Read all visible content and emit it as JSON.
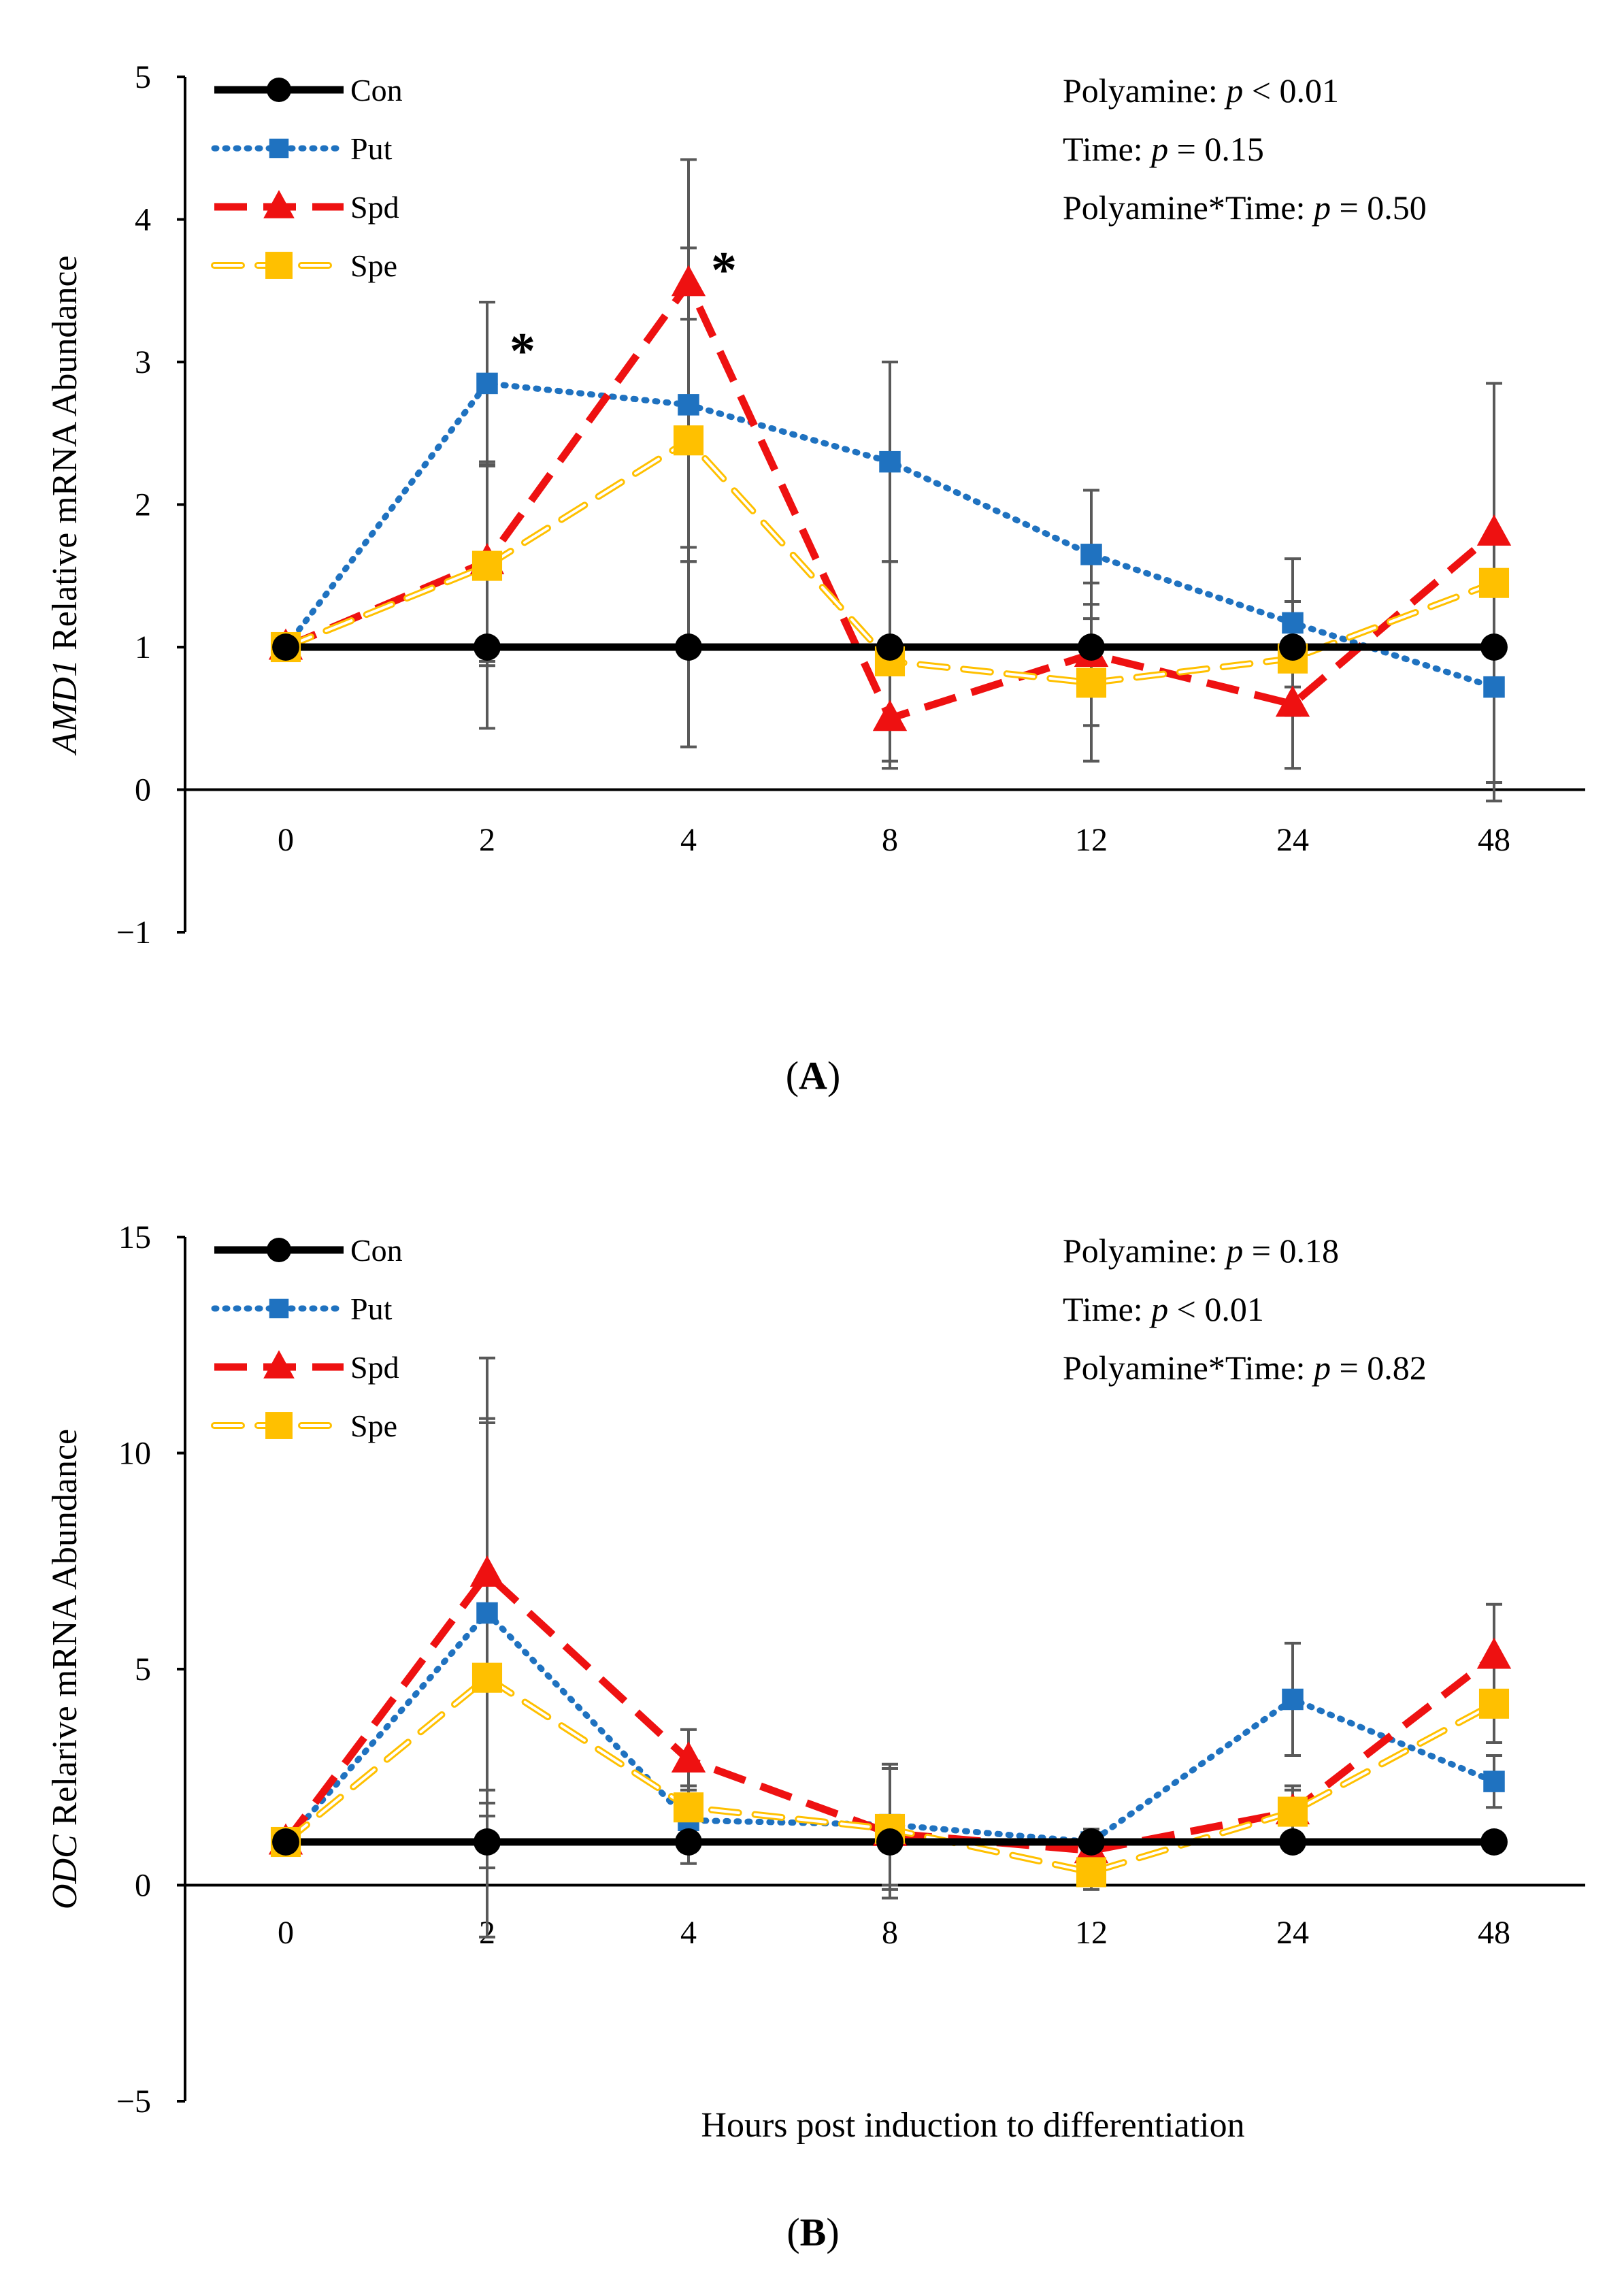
{
  "chart_data": [
    {
      "type": "line",
      "panel_label_open": "(",
      "panel_label_letter": "A",
      "panel_label_close": ")",
      "ylabel_gene": "AMD1",
      "ylabel_rest": " Relative mRNA Abundance",
      "xlabel": "",
      "ylim": [
        -1,
        5
      ],
      "yticks": [
        -1,
        0,
        1,
        2,
        3,
        4,
        5
      ],
      "ytick_labels": [
        "−1",
        "0",
        "1",
        "2",
        "3",
        "4",
        "5"
      ],
      "categories": [
        "0",
        "2",
        "4",
        "8",
        "12",
        "24",
        "48"
      ],
      "series": [
        {
          "name": "Con",
          "color": "#000000",
          "marker": "circle",
          "style": "solid",
          "values": [
            1,
            1,
            1,
            1,
            1,
            1,
            1
          ],
          "errors": [
            0,
            0.57,
            0.7,
            0,
            0,
            0,
            0
          ]
        },
        {
          "name": "Put",
          "color": "#1f72c0",
          "marker": "square",
          "style": "dotted",
          "values": [
            1,
            2.85,
            2.7,
            2.3,
            1.65,
            1.17,
            0.72
          ],
          "errors": [
            0,
            0.57,
            1.1,
            0.7,
            0.45,
            0.45,
            0.8
          ]
        },
        {
          "name": "Spd",
          "color": "#ee1111",
          "marker": "triangle",
          "style": "dashed",
          "values": [
            1,
            1.6,
            3.55,
            0.5,
            0.95,
            0.6,
            1.8
          ],
          "errors": [
            0,
            0.7,
            0.87,
            0.35,
            0.5,
            0.45,
            1.05
          ]
        },
        {
          "name": "Spe",
          "color": "#ffc000",
          "marker": "square",
          "style": "hollow-dash",
          "values": [
            1,
            1.57,
            2.45,
            0.9,
            0.75,
            0.92,
            1.45
          ],
          "errors": [
            0,
            0.7,
            0.85,
            0.7,
            0.55,
            0.4,
            1.4
          ]
        }
      ],
      "stats": [
        {
          "term": "Polyamine: ",
          "p": "p",
          "val": " < 0.01"
        },
        {
          "term": "Time: ",
          "p": "p",
          "val": " = 0.15"
        },
        {
          "term": "Polyamine*Time: ",
          "p": "p",
          "val": " = 0.50"
        }
      ],
      "annotations": [
        {
          "text": "*",
          "x_index": 1,
          "y": 3.08
        },
        {
          "text": "*",
          "x_index": 2,
          "y": 3.65
        }
      ]
    },
    {
      "type": "line",
      "panel_label_open": "(",
      "panel_label_letter": "B",
      "panel_label_close": ")",
      "ylabel_gene": "ODC",
      "ylabel_rest": " Relarive mRNA Abundance",
      "xlabel": "Hours post induction to differentiation",
      "ylim": [
        -5,
        15
      ],
      "yticks": [
        -5,
        0,
        5,
        10,
        15
      ],
      "ytick_labels": [
        "−5",
        "0",
        "5",
        "10",
        "15"
      ],
      "categories": [
        "0",
        "2",
        "4",
        "8",
        "12",
        "24",
        "48"
      ],
      "series": [
        {
          "name": "Con",
          "color": "#000000",
          "marker": "circle",
          "style": "solid",
          "values": [
            1,
            1,
            1,
            1,
            1,
            1,
            1
          ],
          "errors": [
            0,
            0.6,
            0.5,
            0,
            0,
            0,
            0
          ]
        },
        {
          "name": "Put",
          "color": "#1f72c0",
          "marker": "square",
          "style": "dotted",
          "values": [
            1,
            6.3,
            1.5,
            1.4,
            1.0,
            4.3,
            2.4
          ],
          "errors": [
            0,
            4.4,
            0.6,
            1.4,
            0.3,
            1.3,
            0.6
          ]
        },
        {
          "name": "Spd",
          "color": "#ee1111",
          "marker": "triangle",
          "style": "dashed",
          "values": [
            1,
            7.2,
            2.9,
            1.2,
            0.8,
            1.7,
            5.3
          ],
          "errors": [
            0,
            5.0,
            0.7,
            1.5,
            0.4,
            0.6,
            1.2
          ]
        },
        {
          "name": "Spe",
          "color": "#ffc000",
          "marker": "square",
          "style": "hollow-dash",
          "values": [
            1,
            4.8,
            1.8,
            1.3,
            0.3,
            1.7,
            4.2
          ],
          "errors": [
            0,
            6.0,
            0.5,
            1.4,
            0.4,
            0.5,
            0.9
          ]
        }
      ],
      "stats": [
        {
          "term": "Polyamine: ",
          "p": "p",
          "val": " = 0.18"
        },
        {
          "term": "Time: ",
          "p": "p",
          "val": " < 0.01"
        },
        {
          "term": "Polyamine*Time: ",
          "p": "p",
          "val": " = 0.82"
        }
      ],
      "annotations": []
    }
  ]
}
